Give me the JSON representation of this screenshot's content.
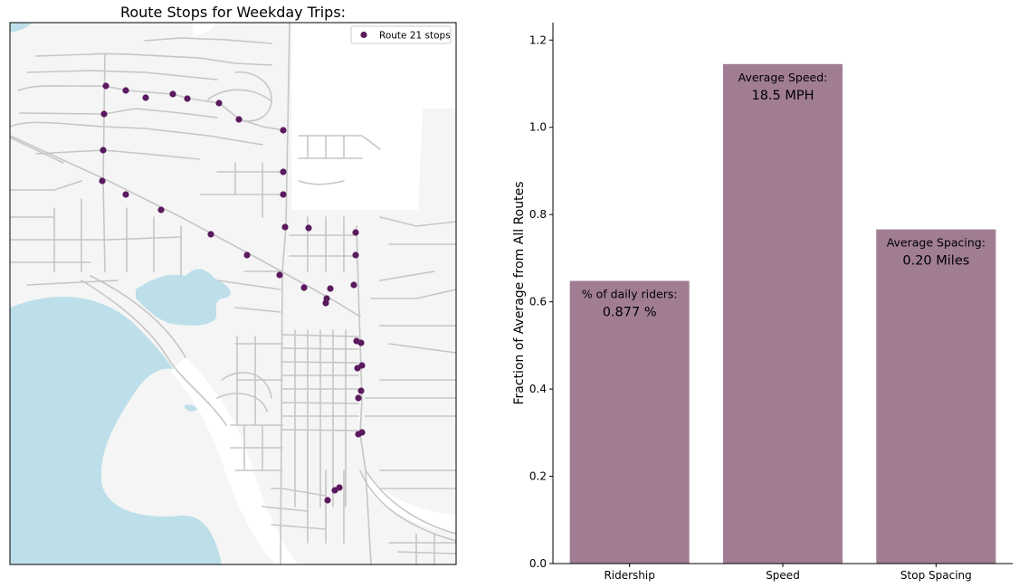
{
  "map": {
    "title": "Route Stops for Weekday Trips:",
    "legend_label": "Route 21 stops",
    "stop_color": "#5a1a5e",
    "water_color": "#bddfe9",
    "land_color": "#f5f5f5",
    "road_color": "#c8c8c8"
  },
  "chart_data": {
    "type": "bar",
    "title": "",
    "categories": [
      "Ridership",
      "Speed",
      "Stop Spacing"
    ],
    "values": [
      0.648,
      1.145,
      0.766
    ],
    "ylabel": "Fraction of Average from All Routes",
    "xlabel": "",
    "ylim": [
      0,
      1.24
    ],
    "yticks": [
      "0.0",
      "0.2",
      "0.4",
      "0.6",
      "0.8",
      "1.0",
      "1.2"
    ],
    "bar_color": "#a17d94",
    "annotations": [
      {
        "label": "% of daily riders:",
        "value": "0.877 %"
      },
      {
        "label": "Average Speed:",
        "value": "18.5 MPH"
      },
      {
        "label": "Average Spacing:",
        "value": "0.20 Miles"
      }
    ]
  }
}
